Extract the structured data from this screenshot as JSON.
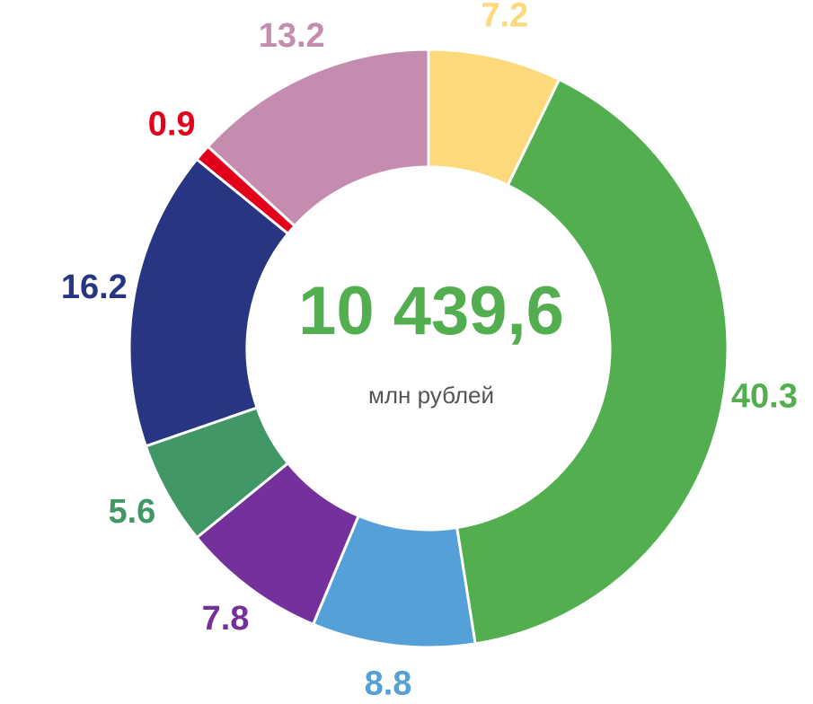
{
  "chart_data": {
    "type": "donut",
    "center_text": "10 439,6",
    "center_subtext": "млн рублей",
    "values": [
      7.2,
      40.3,
      8.8,
      7.8,
      5.6,
      16.2,
      0.9,
      13.2
    ],
    "colors": [
      "#fcd97a",
      "#52ae4e",
      "#55a0d8",
      "#74309b",
      "#419766",
      "#283583",
      "#e2001a",
      "#c48db0"
    ]
  }
}
